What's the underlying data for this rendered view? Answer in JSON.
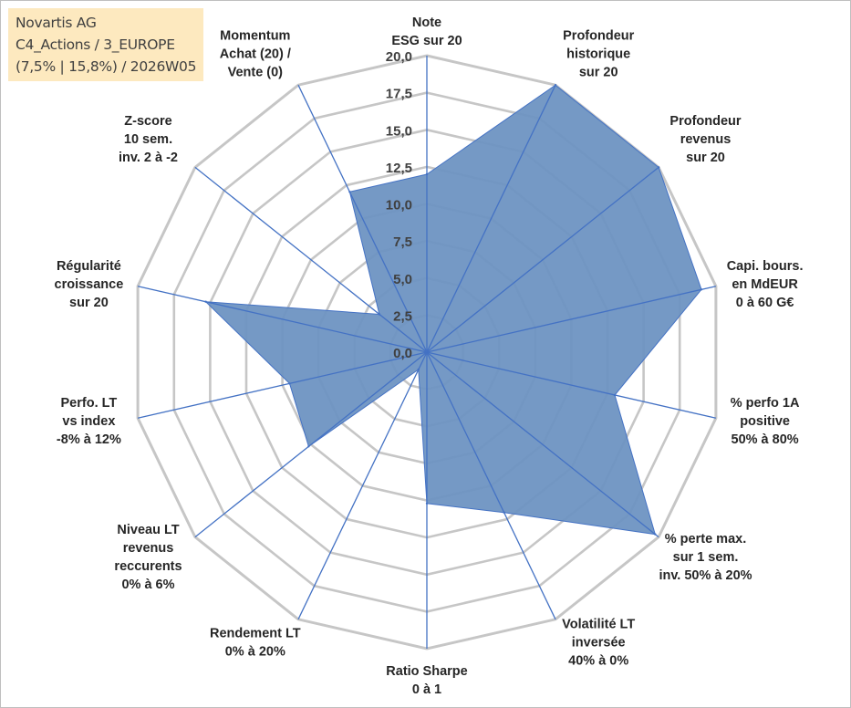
{
  "info": {
    "line1": "Novartis AG",
    "line2": "C4_Actions / 3_EUROPE",
    "line3": "(7,5% | 15,8%) / 2026W05"
  },
  "chart_data": {
    "type": "radar",
    "title": "",
    "rmin": 0,
    "rmax": 20,
    "ticks": [
      "0,0",
      "2,5",
      "5,0",
      "7,5",
      "10,0",
      "12,5",
      "15,0",
      "17,5",
      "20,0"
    ],
    "axes": [
      {
        "lines": [
          "Note",
          "ESG sur 20"
        ]
      },
      {
        "lines": [
          "Profondeur",
          "historique",
          "sur 20"
        ]
      },
      {
        "lines": [
          "Profondeur",
          "revenus",
          "sur 20"
        ]
      },
      {
        "lines": [
          "Capi. bours.",
          "en MdEUR",
          "0 à 60 G€"
        ]
      },
      {
        "lines": [
          "% perfo 1A",
          "positive",
          "50% à 80%"
        ]
      },
      {
        "lines": [
          "% perte max.",
          "sur 1 sem.",
          "inv. 50% à 20%"
        ]
      },
      {
        "lines": [
          "Volatilité LT",
          "inversée",
          "40% à 0%"
        ]
      },
      {
        "lines": [
          "Ratio Sharpe",
          "0 à 1"
        ]
      },
      {
        "lines": [
          "Rendement LT",
          "0% à 20%"
        ]
      },
      {
        "lines": [
          "Niveau LT",
          "revenus",
          "reccurents",
          "0% à 6%"
        ]
      },
      {
        "lines": [
          "Perfo. LT",
          "vs index",
          "-8% à 12%"
        ]
      },
      {
        "lines": [
          "Régularité",
          "croissance",
          "sur 20"
        ]
      },
      {
        "lines": [
          "Z-score",
          "10 sem.",
          "inv. 2 à -2"
        ]
      },
      {
        "lines": [
          "Momentum",
          "Achat (20) /",
          "Vente (0)"
        ]
      }
    ],
    "series": [
      {
        "name": "Novartis AG",
        "values": [
          12.0,
          20.0,
          20.0,
          19.0,
          13.0,
          19.7,
          12.0,
          10.2,
          1.3,
          10.2,
          9.5,
          15.3,
          4.1,
          12.0
        ]
      }
    ],
    "colors": {
      "fill": "#6e93c2",
      "stroke": "#4472c4",
      "spoke": "#4472c4",
      "grid": "#c6c6c6"
    }
  }
}
